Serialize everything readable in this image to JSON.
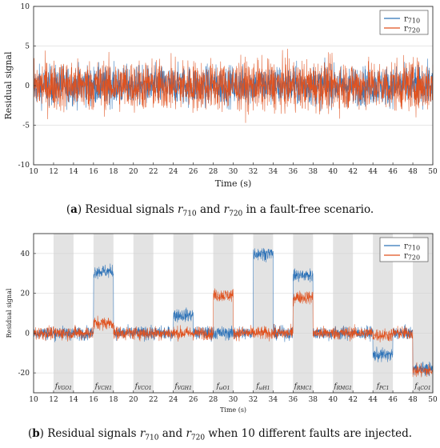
{
  "captions": {
    "a": {
      "letter": "a",
      "before": " Residual signals ",
      "sym1": "r",
      "sub1": "710",
      "mid": " and ",
      "sym2": "r",
      "sub2": "720",
      "after": " in a fault-free scenario."
    },
    "b": {
      "letter": "b",
      "before": " Residual signals ",
      "sym1": "r",
      "sub1": "710",
      "mid": " and ",
      "sym2": "r",
      "sub2": "720",
      "after": " when 10 different faults are injected."
    }
  },
  "colors": {
    "r710": "#2e73b8",
    "r720": "#e0521f",
    "shade": "#e3e3e3"
  },
  "chart_data": [
    {
      "type": "line",
      "xlabel": "Time (s)",
      "ylabel": "Residual signal",
      "xlim": [
        10,
        50
      ],
      "ylim": [
        -10,
        10
      ],
      "xticks": [
        10,
        12,
        14,
        16,
        18,
        20,
        22,
        24,
        26,
        28,
        30,
        32,
        34,
        36,
        38,
        40,
        42,
        44,
        46,
        48,
        50
      ],
      "yticks": [
        -10,
        -5,
        0,
        5,
        10
      ],
      "grid": "horizontal",
      "legend_position": "top-right",
      "series": [
        {
          "name": "r710",
          "sub": "710",
          "noise_std": 1.7,
          "level": 0
        },
        {
          "name": "r720",
          "sub": "720",
          "noise_std": 2.2,
          "level": 0
        }
      ]
    },
    {
      "type": "line",
      "xlabel": "Time (s)",
      "ylabel": "Residual signal",
      "xlim": [
        10,
        50
      ],
      "ylim": [
        -30,
        50
      ],
      "xticks": [
        10,
        12,
        14,
        16,
        18,
        20,
        22,
        24,
        26,
        28,
        30,
        32,
        34,
        36,
        38,
        40,
        42,
        44,
        46,
        48,
        50
      ],
      "yticks": [
        -20,
        0,
        20,
        40
      ],
      "grid": "horizontal",
      "legend_position": "top-right",
      "fault_windows": [
        {
          "label": "f",
          "sub": "VGO1",
          "start": 12,
          "end": 14
        },
        {
          "label": "f",
          "sub": "VCH1",
          "start": 16,
          "end": 18
        },
        {
          "label": "f",
          "sub": "VCO1",
          "start": 20,
          "end": 22
        },
        {
          "label": "f",
          "sub": "VGH1",
          "start": 24,
          "end": 26
        },
        {
          "label": "f",
          "sub": "ωO1",
          "start": 28,
          "end": 30
        },
        {
          "label": "f",
          "sub": "ωH1",
          "start": 32,
          "end": 34
        },
        {
          "label": "f",
          "sub": "RMC1",
          "start": 36,
          "end": 38
        },
        {
          "label": "f",
          "sub": "RMG1",
          "start": 40,
          "end": 42
        },
        {
          "label": "f",
          "sub": "PC1",
          "start": 44,
          "end": 46
        },
        {
          "label": "f",
          "sub": "qCO1",
          "start": 48,
          "end": 50
        }
      ],
      "series": [
        {
          "name": "r710",
          "sub": "710",
          "noise_std": 2.3,
          "levels": [
            0,
            31,
            0,
            9,
            0,
            40,
            29,
            0,
            -11,
            -18
          ]
        },
        {
          "name": "r720",
          "sub": "720",
          "noise_std": 2.3,
          "levels": [
            0,
            5,
            0,
            0,
            19,
            0,
            18,
            0,
            -1,
            -19
          ]
        }
      ]
    }
  ]
}
